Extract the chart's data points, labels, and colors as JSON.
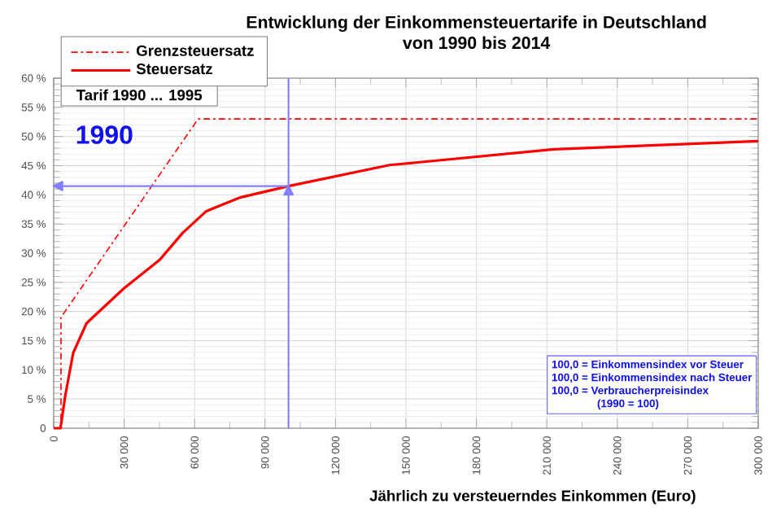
{
  "chart_data": {
    "type": "line",
    "title": "Entwicklung der Einkommensteuertarife in Deutschland",
    "subtitle": "von 1990 bis 2014",
    "xlabel": "Jährlich zu versteuerndes Einkommen (Euro)",
    "legend_title": "Tarif 1990 ... 1995",
    "series": [
      {
        "name": "Grenzsteuersatz",
        "color": "#ff0000",
        "line_style": "dashed",
        "x": [
          0,
          3100,
          3100,
          61500,
          300000
        ],
        "values": [
          0,
          0,
          19,
          53,
          53
        ]
      },
      {
        "name": "Steuersatz",
        "color": "#ff0000",
        "line_style": "solid",
        "x": [
          0,
          2900,
          4900,
          8300,
          14000,
          30000,
          45000,
          55000,
          65000,
          79000,
          100000,
          143000,
          213000,
          300000
        ],
        "values": [
          0,
          0,
          5.5,
          12.9,
          18,
          24,
          28.8,
          33.5,
          37.2,
          39.5,
          41.5,
          45.1,
          47.8,
          49.2
        ]
      }
    ],
    "xlim": [
      0,
      300000
    ],
    "ylim": [
      0,
      60
    ],
    "xticks": [
      0,
      {
        "value": 30000,
        "label": "30 000"
      },
      {
        "value": 60000,
        "label": "60 000"
      },
      {
        "value": 90000,
        "label": "90 000"
      },
      {
        "value": 120000,
        "label": "120 000"
      },
      {
        "value": 150000,
        "label": "150 000"
      },
      {
        "value": 180000,
        "label": "180 000"
      },
      {
        "value": 210000,
        "label": "210 000"
      },
      {
        "value": 240000,
        "label": "240 000"
      },
      {
        "value": 270000,
        "label": "270 000"
      },
      {
        "value": 300000,
        "label": "300 000"
      }
    ],
    "yticks": [
      0,
      {
        "value": 5,
        "label": "5 %"
      },
      {
        "value": 10,
        "label": "10 %"
      },
      {
        "value": 15,
        "label": "15 %"
      },
      {
        "value": 20,
        "label": "20 %"
      },
      {
        "value": 25,
        "label": "25 %"
      },
      {
        "value": 30,
        "label": "30 %"
      },
      {
        "value": 35,
        "label": "35 %"
      },
      {
        "value": 40,
        "label": "40 %"
      },
      {
        "value": 45,
        "label": "45 %"
      },
      {
        "value": 50,
        "label": "50 %"
      },
      {
        "value": 55,
        "label": "55 %"
      },
      {
        "value": 60,
        "label": "60 %"
      }
    ],
    "ref_lines": [
      {
        "axis": "x",
        "value": 100000,
        "color": "#8080ff"
      },
      {
        "axis": "y",
        "value": 41.5,
        "color": "#8080ff"
      }
    ],
    "annotations": [
      "1990",
      "100,0  = Einkommensindex vor Steuer",
      "100,0  = Einkommensindex nach Steuer",
      "100,0  = Verbraucherpreisindex",
      "(1990 = 100)"
    ],
    "grid": true,
    "legend": "top left",
    "marker": "none"
  }
}
